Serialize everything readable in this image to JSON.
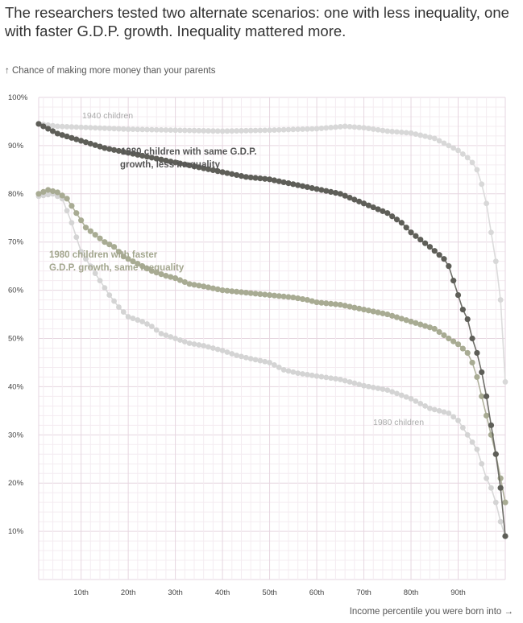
{
  "headline": "The researchers tested two alternate scenarios: one with less inequality, one with faster G.D.P. growth. Inequality mattered more.",
  "y_axis_title": "↑ Chance of making more money than your parents",
  "x_axis_title": "Income percentile you were born into →",
  "colors": {
    "children_1940": "#d8d8d8",
    "children_1980": "#d4d4d4",
    "less_inequality": "#5e5e58",
    "faster_gdp": "#a8ab93",
    "grid_major": "#e6d6e0",
    "grid_minor": "#f4ecf1"
  },
  "chart_data": {
    "type": "scatter",
    "x_range": [
      1,
      100
    ],
    "y_range": [
      0,
      100
    ],
    "y_ticks": [
      "100%",
      "90%",
      "80%",
      "70%",
      "60%",
      "50%",
      "40%",
      "30%",
      "20%",
      "10%"
    ],
    "x_ticks": [
      "10th",
      "20th",
      "30th",
      "40th",
      "50th",
      "60th",
      "70th",
      "80th",
      "90th"
    ],
    "grid": true,
    "series": [
      {
        "name": "1940 children",
        "color": "#d8d8d8",
        "anchors": [
          [
            1,
            94.5
          ],
          [
            5,
            94
          ],
          [
            10,
            93.8
          ],
          [
            20,
            93.4
          ],
          [
            30,
            93.2
          ],
          [
            40,
            93.0
          ],
          [
            50,
            93.2
          ],
          [
            60,
            93.5
          ],
          [
            66,
            94
          ],
          [
            70,
            93.7
          ],
          [
            75,
            93
          ],
          [
            80,
            92.6
          ],
          [
            85,
            91.5
          ],
          [
            90,
            89
          ],
          [
            92,
            87.5
          ],
          [
            93,
            86.5
          ],
          [
            94,
            85
          ],
          [
            95,
            82
          ],
          [
            96,
            78
          ],
          [
            97,
            72
          ],
          [
            98,
            66
          ],
          [
            99,
            58
          ],
          [
            100,
            41
          ]
        ]
      },
      {
        "name": "1980 children",
        "color": "#d4d4d4",
        "anchors": [
          [
            1,
            79.5
          ],
          [
            4,
            80
          ],
          [
            6,
            79
          ],
          [
            8,
            74
          ],
          [
            9,
            71
          ],
          [
            10,
            68
          ],
          [
            12,
            65
          ],
          [
            14,
            62
          ],
          [
            16,
            59
          ],
          [
            18,
            56.5
          ],
          [
            20,
            54.5
          ],
          [
            23,
            53.5
          ],
          [
            25,
            52.5
          ],
          [
            27,
            51
          ],
          [
            30,
            50
          ],
          [
            33,
            49
          ],
          [
            36,
            48.5
          ],
          [
            40,
            47.5
          ],
          [
            43,
            46.5
          ],
          [
            46,
            45.8
          ],
          [
            50,
            45
          ],
          [
            53,
            43.5
          ],
          [
            56,
            42.8
          ],
          [
            60,
            42.2
          ],
          [
            65,
            41.5
          ],
          [
            70,
            40.2
          ],
          [
            75,
            39.3
          ],
          [
            80,
            37.5
          ],
          [
            84,
            35.5
          ],
          [
            88,
            34.5
          ],
          [
            90,
            33
          ],
          [
            92,
            30
          ],
          [
            94,
            27
          ],
          [
            95,
            24
          ],
          [
            96,
            21
          ],
          [
            97,
            19
          ],
          [
            98,
            16
          ],
          [
            99,
            12
          ],
          [
            100,
            9
          ]
        ]
      },
      {
        "name": "1980 children with same G.D.P. growth, less inequality",
        "color": "#5e5e58",
        "anchors": [
          [
            1,
            94.5
          ],
          [
            5,
            92.5
          ],
          [
            10,
            91
          ],
          [
            15,
            89.5
          ],
          [
            20,
            88.5
          ],
          [
            25,
            87.5
          ],
          [
            30,
            86.5
          ],
          [
            35,
            85.5
          ],
          [
            40,
            84.5
          ],
          [
            45,
            83.5
          ],
          [
            50,
            83
          ],
          [
            55,
            82
          ],
          [
            60,
            81
          ],
          [
            65,
            80
          ],
          [
            70,
            78
          ],
          [
            75,
            76
          ],
          [
            78,
            74
          ],
          [
            80,
            72
          ],
          [
            84,
            69
          ],
          [
            87,
            66.5
          ],
          [
            88,
            65
          ],
          [
            89,
            62
          ],
          [
            90,
            59
          ],
          [
            91,
            56
          ],
          [
            92,
            54
          ],
          [
            93,
            50
          ],
          [
            94,
            47
          ],
          [
            95,
            43
          ],
          [
            96,
            38
          ],
          [
            97,
            32
          ],
          [
            98,
            26
          ],
          [
            99,
            19
          ],
          [
            100,
            9
          ]
        ]
      },
      {
        "name": "1980 children with faster G.D.P. growth, same inequality",
        "color": "#a8ab93",
        "anchors": [
          [
            1,
            80
          ],
          [
            3,
            80.8
          ],
          [
            5,
            80.3
          ],
          [
            7,
            79
          ],
          [
            9,
            76
          ],
          [
            11,
            73
          ],
          [
            13,
            71.5
          ],
          [
            15,
            70
          ],
          [
            17,
            69
          ],
          [
            19,
            67
          ],
          [
            22,
            65.5
          ],
          [
            25,
            64
          ],
          [
            28,
            63
          ],
          [
            30,
            62.5
          ],
          [
            33,
            61.3
          ],
          [
            36,
            60.8
          ],
          [
            40,
            60
          ],
          [
            45,
            59.5
          ],
          [
            50,
            59
          ],
          [
            55,
            58.5
          ],
          [
            58,
            58
          ],
          [
            60,
            57.5
          ],
          [
            65,
            57
          ],
          [
            70,
            56
          ],
          [
            75,
            55
          ],
          [
            80,
            53.5
          ],
          [
            85,
            52
          ],
          [
            88,
            50
          ],
          [
            90,
            48.8
          ],
          [
            92,
            47
          ],
          [
            93,
            45
          ],
          [
            94,
            42
          ],
          [
            95,
            38
          ],
          [
            96,
            34
          ],
          [
            97,
            30
          ],
          [
            98,
            26
          ],
          [
            99,
            21
          ],
          [
            100,
            16
          ]
        ]
      }
    ],
    "annotations": [
      {
        "lines": [
          "1940 children"
        ],
        "style": "grey"
      },
      {
        "lines": [
          "1980 children with same G.D.P.",
          "growth, less inequality"
        ],
        "style": "bold-dark"
      },
      {
        "lines": [
          "1980 children with faster",
          "G.D.P. growth, same inequality"
        ],
        "style": "bold-olive"
      },
      {
        "lines": [
          "1980 children"
        ],
        "style": "grey"
      }
    ]
  }
}
